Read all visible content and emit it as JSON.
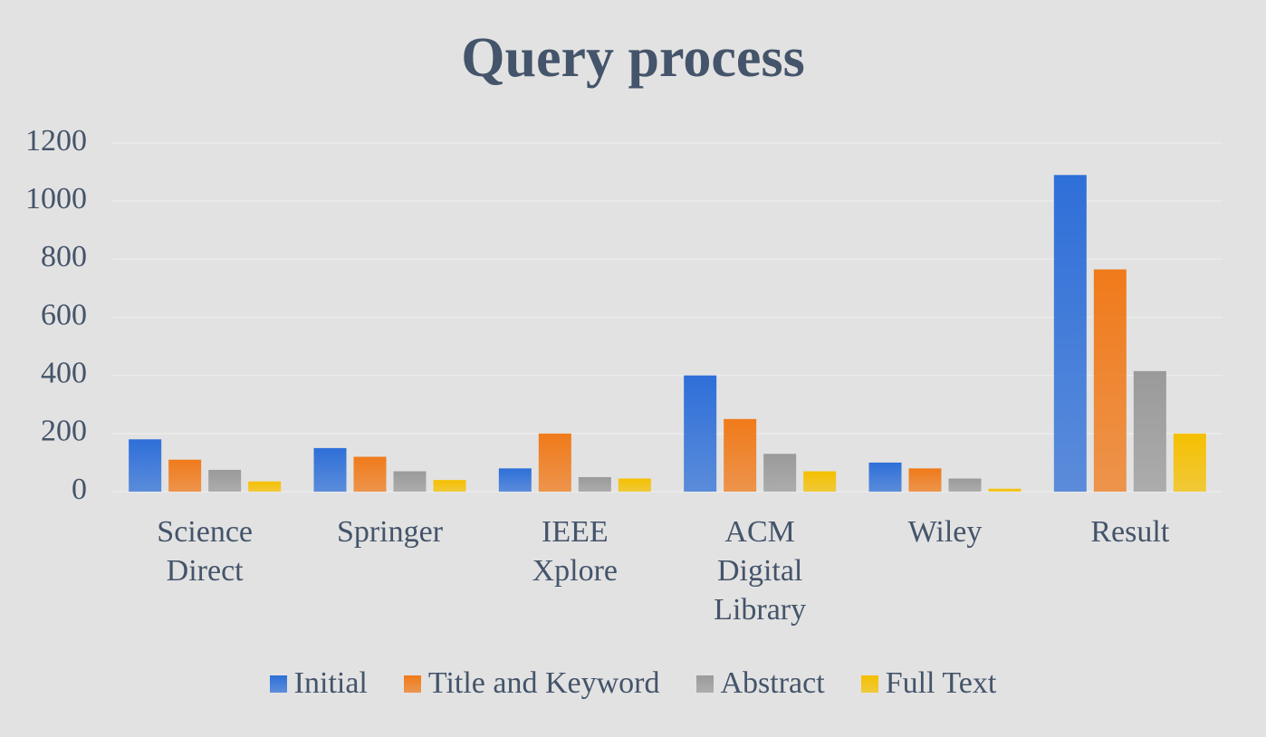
{
  "chart_data": {
    "type": "bar",
    "title": "Query process",
    "categories": [
      "Science Direct",
      "Springer",
      "IEEE Xplore",
      "ACM Digital Library",
      "Wiley",
      "Result"
    ],
    "series": [
      {
        "name": "Initial",
        "color": "#2e6fd8",
        "values": [
          180,
          150,
          80,
          400,
          100,
          1090
        ]
      },
      {
        "name": "Title and Keyword",
        "color": "#f07a1a",
        "values": [
          110,
          120,
          200,
          250,
          80,
          765
        ]
      },
      {
        "name": "Abstract",
        "color": "#9a9a9a",
        "values": [
          75,
          70,
          50,
          130,
          45,
          415
        ]
      },
      {
        "name": "Full Text",
        "color": "#f5c000",
        "values": [
          35,
          40,
          45,
          70,
          10,
          200
        ]
      }
    ],
    "ylim": [
      0,
      1200
    ],
    "yticks": [
      0,
      200,
      400,
      600,
      800,
      1000,
      1200
    ],
    "grid": true
  }
}
